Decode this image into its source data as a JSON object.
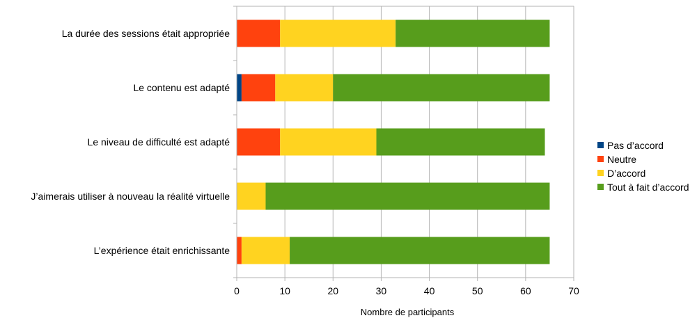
{
  "chart_data": {
    "type": "bar",
    "orientation": "horizontal",
    "stacked": true,
    "categories": [
      "La durée des sessions était appropriée",
      "Le contenu est adapté",
      "Le niveau de difficulté est adapté",
      "J’aimerais utiliser à nouveau la réalité virtuelle",
      "L’expérience était enrichissante"
    ],
    "series": [
      {
        "name": "Pas d’accord",
        "color": "#004586",
        "values": [
          0,
          1,
          0,
          0,
          0
        ]
      },
      {
        "name": "Neutre",
        "color": "#ff420e",
        "values": [
          9,
          7,
          9,
          0,
          1
        ]
      },
      {
        "name": "D’accord",
        "color": "#ffd320",
        "values": [
          24,
          12,
          20,
          6,
          10
        ]
      },
      {
        "name": "Tout à fait d’accord",
        "color": "#579d1c",
        "values": [
          32,
          45,
          35,
          59,
          54
        ]
      }
    ],
    "xlabel": "Nombre de participants",
    "ylabel": "",
    "xlim": [
      0,
      70
    ],
    "ticks": [
      "0",
      "10",
      "20",
      "30",
      "40",
      "50",
      "60",
      "70"
    ],
    "grid": "vertical",
    "legend_position": "right"
  }
}
